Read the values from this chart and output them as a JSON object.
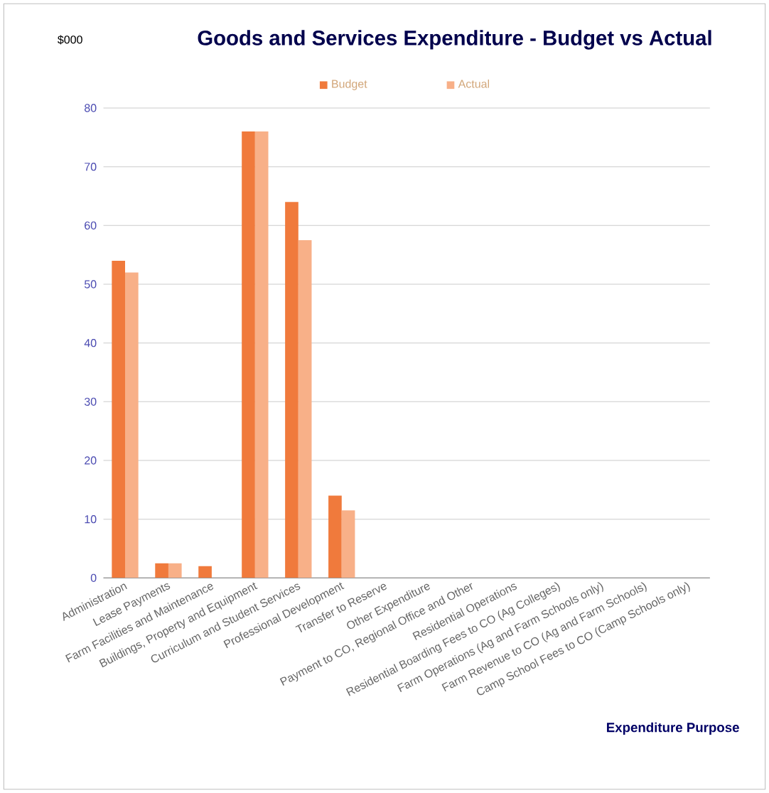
{
  "chart_data": {
    "type": "bar",
    "title": "Goods and Services Expenditure - Budget vs Actual",
    "annotations": [
      "$000"
    ],
    "xlabel": "Expenditure Purpose",
    "categories": [
      "Administration",
      "Lease Payments",
      "Farm Facilities and Maintenance",
      "Buildings, Property and Equipment",
      "Curriculum and Student Services",
      "Professional Development",
      "Transfer to Reserve",
      "Other Expenditure",
      "Payment to CO, Regional Office and Other",
      "Residential Operations",
      "Residential Boarding Fees to CO (Ag Colleges)",
      "Farm Operations (Ag and Farm Schools only)",
      "Farm Revenue to CO (Ag and Farm Schools)",
      "Camp School Fees to CO (Camp Schools only)"
    ],
    "series": [
      {
        "name": "Budget",
        "color": "#f07a3c",
        "values": [
          54,
          2.5,
          2,
          76,
          64,
          14,
          0,
          0,
          0,
          0,
          0,
          0,
          0,
          0
        ]
      },
      {
        "name": "Actual",
        "color": "#f8b088",
        "values": [
          52,
          2.5,
          0,
          76,
          57.5,
          11.5,
          0,
          0,
          0,
          0,
          0,
          0,
          0,
          0
        ]
      }
    ],
    "ylim": [
      0,
      80
    ],
    "yticks": [
      0,
      10,
      20,
      30,
      40,
      50,
      60,
      70,
      80
    ],
    "grid": "y",
    "legend": "top"
  }
}
